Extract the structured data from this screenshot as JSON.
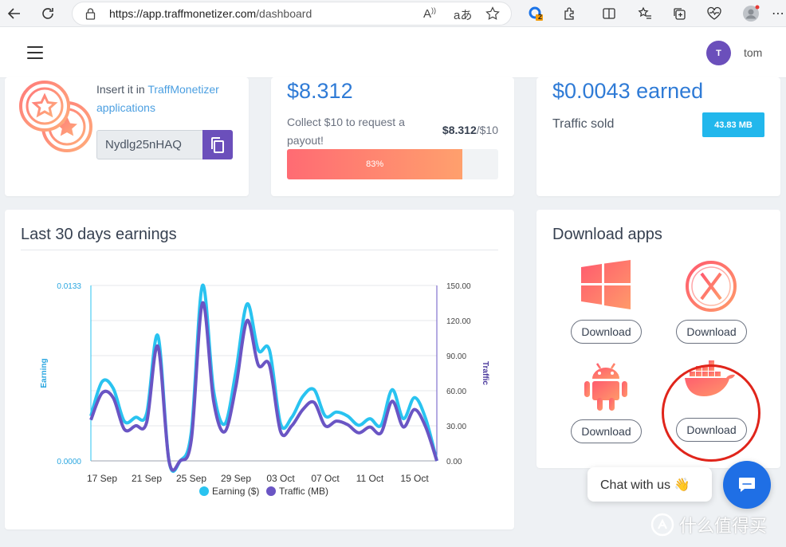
{
  "browser": {
    "url_host": "https://app.traffmonetizer.com",
    "url_path": "/dashboard",
    "ext_badge": "2",
    "read_aloud_icon": "read-aloud-icon",
    "translate_icon": "translate-icon"
  },
  "header": {
    "avatar_initial": "T",
    "username": "tom"
  },
  "referral": {
    "line1": "Insert it in ",
    "link": "TraffMonetizer",
    "line2": "applications",
    "code": "Nydlg25nHAQ"
  },
  "balance": {
    "amount": "$8.312",
    "collect_text": "Collect $10 to request a payout!",
    "goal_value": "$8.312",
    "goal_total": "/$10",
    "progress_label": "83%",
    "progress_fraction": 0.831
  },
  "earned": {
    "amount": "$0.0043 earned",
    "traffic_label": "Traffic sold",
    "traffic_value": "43.83 MB"
  },
  "earnings_chart": {
    "title": "Last 30 days earnings"
  },
  "chart_data": {
    "type": "line",
    "x": [
      "16 Sep",
      "17 Sep",
      "18 Sep",
      "19 Sep",
      "20 Sep",
      "21 Sep",
      "22 Sep",
      "23 Sep",
      "24 Sep",
      "25 Sep",
      "26 Sep",
      "27 Sep",
      "28 Sep",
      "29 Sep",
      "30 Sep",
      "01 Oct",
      "02 Oct",
      "03 Oct",
      "04 Oct",
      "05 Oct",
      "06 Oct",
      "07 Oct",
      "08 Oct",
      "09 Oct",
      "10 Oct",
      "11 Oct",
      "12 Oct",
      "13 Oct",
      "14 Oct",
      "15 Oct",
      "16 Oct",
      "17 Oct"
    ],
    "xticks": [
      "17 Sep",
      "21 Sep",
      "25 Sep",
      "29 Sep",
      "03 Oct",
      "07 Oct",
      "11 Oct",
      "15 Oct"
    ],
    "series": [
      {
        "name": "Earning ($)",
        "axis": "left",
        "color": "#29c3f0",
        "values": [
          0.0034,
          0.006,
          0.0055,
          0.003,
          0.0033,
          0.0036,
          0.0095,
          0.0,
          0.0,
          0.0022,
          0.0133,
          0.0053,
          0.0028,
          0.0068,
          0.0119,
          0.0084,
          0.0084,
          0.0028,
          0.0033,
          0.0049,
          0.0054,
          0.0034,
          0.0037,
          0.0034,
          0.0027,
          0.0032,
          0.0027,
          0.0054,
          0.0032,
          0.0048,
          0.0032,
          0.0
        ]
      },
      {
        "name": "Traffic (MB)",
        "axis": "right",
        "color": "#6a55c4",
        "values": [
          35,
          58,
          54,
          27,
          30,
          33,
          98,
          0,
          0,
          18,
          135,
          51,
          25,
          64,
          120,
          82,
          82,
          25,
          30,
          44,
          50,
          30,
          34,
          31,
          24,
          29,
          24,
          51,
          29,
          44,
          29,
          0
        ]
      }
    ],
    "y_left": {
      "label": "Earning",
      "ticks": [
        "0.0000",
        "0.0133"
      ],
      "range": [
        0,
        0.0133
      ]
    },
    "y_right": {
      "label": "Traffic",
      "ticks": [
        "0.00",
        "30.00",
        "60.00",
        "90.00",
        "120.00",
        "150.00"
      ],
      "range": [
        0,
        150
      ]
    },
    "legend": [
      "Earning ($)",
      "Traffic (MB)"
    ],
    "legend_position": "bottom",
    "grid": true
  },
  "downloads": {
    "title": "Download apps",
    "apps": [
      {
        "name": "windows-icon",
        "label": "Download"
      },
      {
        "name": "macos-icon",
        "label": "Download"
      },
      {
        "name": "android-icon",
        "label": "Download"
      },
      {
        "name": "docker-icon",
        "label": "Download"
      }
    ]
  },
  "chat": {
    "label": "Chat with us 👋"
  },
  "watermark": {
    "text": "什么值得买"
  }
}
